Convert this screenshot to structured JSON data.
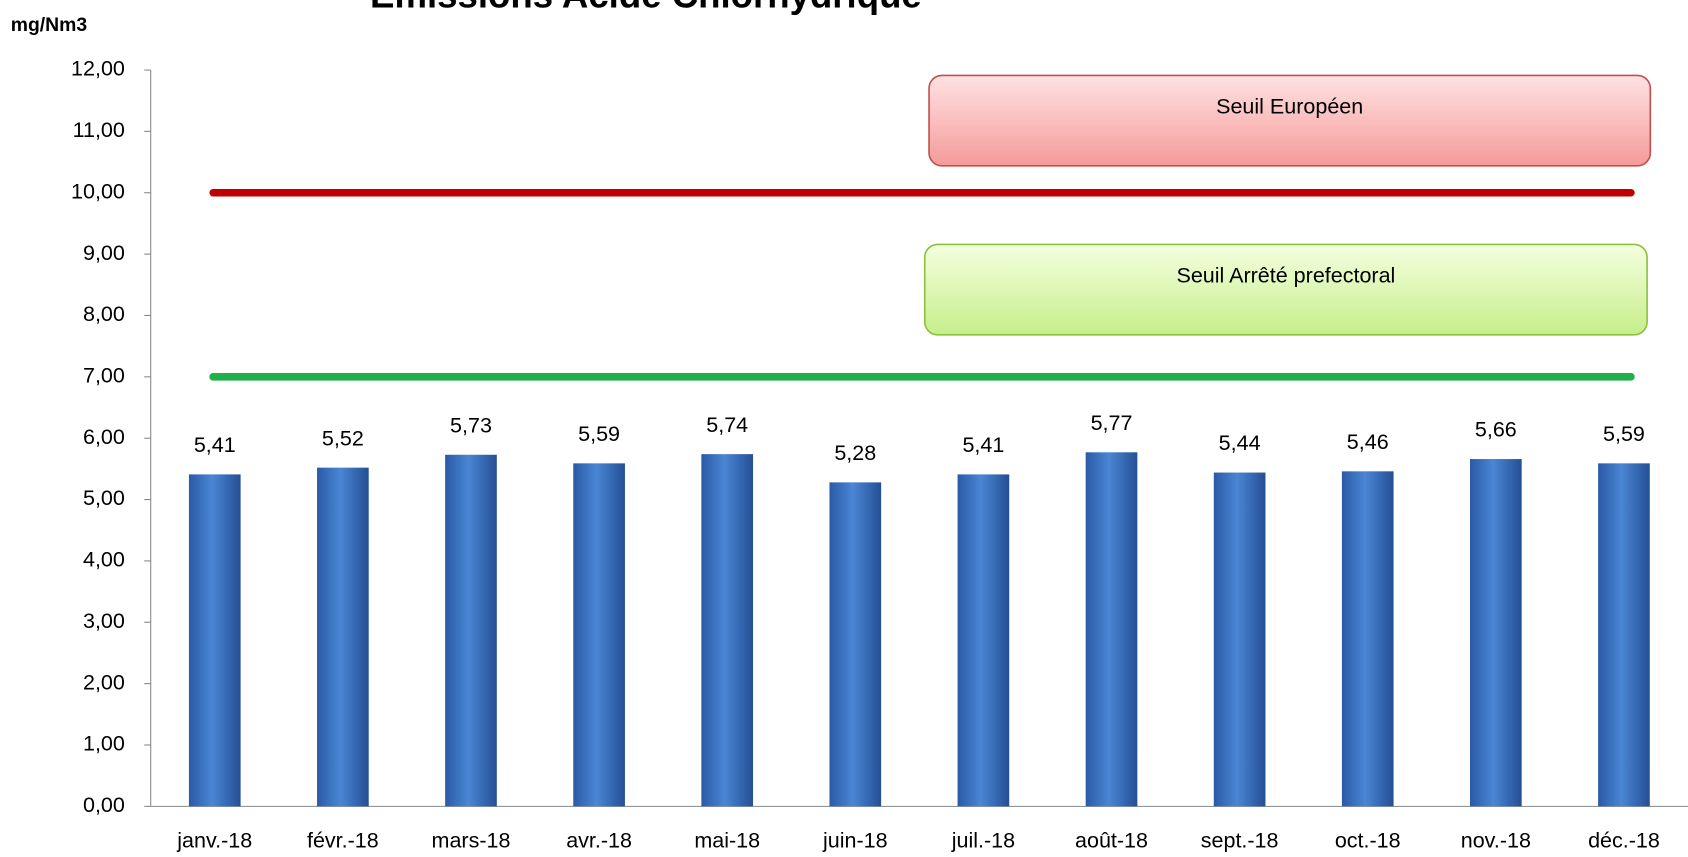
{
  "chart_data": {
    "type": "bar",
    "title": "Emissions Acide Chlorhydrique",
    "y_label": "mg/Nm3",
    "categories": [
      "janv.-18",
      "févr.-18",
      "mars-18",
      "avr.-18",
      "mai-18",
      "juin-18",
      "juil.-18",
      "août-18",
      "sept.-18",
      "oct.-18",
      "nov.-18",
      "déc.-18"
    ],
    "values": [
      5.41,
      5.52,
      5.73,
      5.59,
      5.74,
      5.28,
      5.41,
      5.77,
      5.44,
      5.46,
      5.66,
      5.59
    ],
    "value_labels": [
      "5,41",
      "5,52",
      "5,73",
      "5,59",
      "5,74",
      "5,28",
      "5,41",
      "5,77",
      "5,44",
      "5,46",
      "5,66",
      "5,59"
    ],
    "color": "#3f78c8",
    "ylim": [
      0,
      12
    ],
    "yticks": [
      {
        "value": 0,
        "label": "0,00"
      },
      {
        "value": 1,
        "label": "1,00"
      },
      {
        "value": 2,
        "label": "2,00"
      },
      {
        "value": 3,
        "label": "3,00"
      },
      {
        "value": 4,
        "label": "4,00"
      },
      {
        "value": 5,
        "label": "5,00"
      },
      {
        "value": 6,
        "label": "6,00"
      },
      {
        "value": 7,
        "label": "7,00"
      },
      {
        "value": 8,
        "label": "8,00"
      },
      {
        "value": 9,
        "label": "9,00"
      },
      {
        "value": 10,
        "label": "10,00"
      },
      {
        "value": 11,
        "label": "11,00"
      },
      {
        "value": 12,
        "label": "12,00"
      }
    ],
    "grid": false,
    "reference_lines": [
      {
        "value": 10,
        "color": "#c00000",
        "label": "Seuil Européen"
      },
      {
        "value": 7,
        "color": "#1fb04a",
        "label": "Seuil Arrêté prefectoral"
      }
    ]
  }
}
